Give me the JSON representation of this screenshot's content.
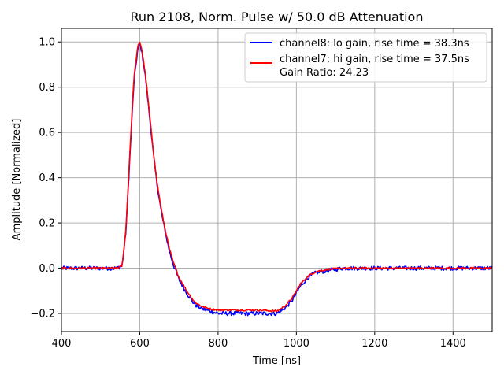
{
  "chart_data": {
    "type": "line",
    "title": "Run 2108, Norm. Pulse w/ 50.0 dB Attenuation",
    "xlabel": "Time [ns]",
    "ylabel": "Amplitude [Normalized]",
    "xlim": [
      400,
      1500
    ],
    "ylim": [
      -0.28,
      1.06
    ],
    "x_ticks": [
      400,
      600,
      800,
      1000,
      1200,
      1400
    ],
    "y_ticks": [
      -0.2,
      0.0,
      0.2,
      0.4,
      0.6,
      0.8,
      1.0
    ],
    "x_tick_labels": [
      "400",
      "600",
      "800",
      "1000",
      "1200",
      "1400"
    ],
    "y_tick_labels": [
      "−0.2",
      "0.0",
      "0.2",
      "0.4",
      "0.6",
      "0.8",
      "1.0"
    ],
    "grid": true,
    "legend_position": "top-right",
    "legend_extra_text": "Gain Ratio: 24.23",
    "series": [
      {
        "name": "channel8: lo gain, rise time = 38.3ns",
        "color": "#0000ff",
        "noise": 0.009,
        "x": [
          400,
          540,
          555,
          565,
          575,
          585,
          595,
          600,
          605,
          615,
          625,
          635,
          645,
          655,
          665,
          675,
          685,
          700,
          720,
          740,
          760,
          780,
          800,
          850,
          900,
          950,
          960,
          975,
          990,
          1000,
          1010,
          1030,
          1050,
          1080,
          1120,
          1200,
          1300,
          1400,
          1500
        ],
        "y": [
          0.0,
          0.0,
          0.01,
          0.17,
          0.5,
          0.82,
          0.97,
          0.99,
          0.96,
          0.84,
          0.67,
          0.5,
          0.36,
          0.25,
          0.16,
          0.08,
          0.02,
          -0.05,
          -0.11,
          -0.16,
          -0.18,
          -0.19,
          -0.2,
          -0.2,
          -0.2,
          -0.2,
          -0.19,
          -0.17,
          -0.14,
          -0.11,
          -0.08,
          -0.04,
          -0.02,
          -0.01,
          0.0,
          0.0,
          0.0,
          0.0,
          0.0
        ]
      },
      {
        "name": "channel7: hi gain, rise time = 37.5ns",
        "color": "#ff0000",
        "noise": 0.004,
        "x": [
          400,
          540,
          555,
          565,
          575,
          585,
          595,
          600,
          605,
          615,
          625,
          635,
          645,
          655,
          665,
          675,
          685,
          700,
          720,
          740,
          760,
          780,
          800,
          850,
          900,
          950,
          960,
          975,
          990,
          1000,
          1010,
          1030,
          1050,
          1080,
          1120,
          1200,
          1300,
          1400,
          1500
        ],
        "y": [
          0.0,
          0.0,
          0.01,
          0.18,
          0.52,
          0.84,
          0.98,
          1.0,
          0.97,
          0.85,
          0.68,
          0.51,
          0.37,
          0.26,
          0.17,
          0.09,
          0.03,
          -0.04,
          -0.1,
          -0.15,
          -0.17,
          -0.18,
          -0.185,
          -0.185,
          -0.185,
          -0.19,
          -0.18,
          -0.16,
          -0.13,
          -0.1,
          -0.07,
          -0.035,
          -0.015,
          -0.005,
          0.0,
          0.0,
          0.0,
          0.0,
          0.0
        ]
      }
    ]
  }
}
